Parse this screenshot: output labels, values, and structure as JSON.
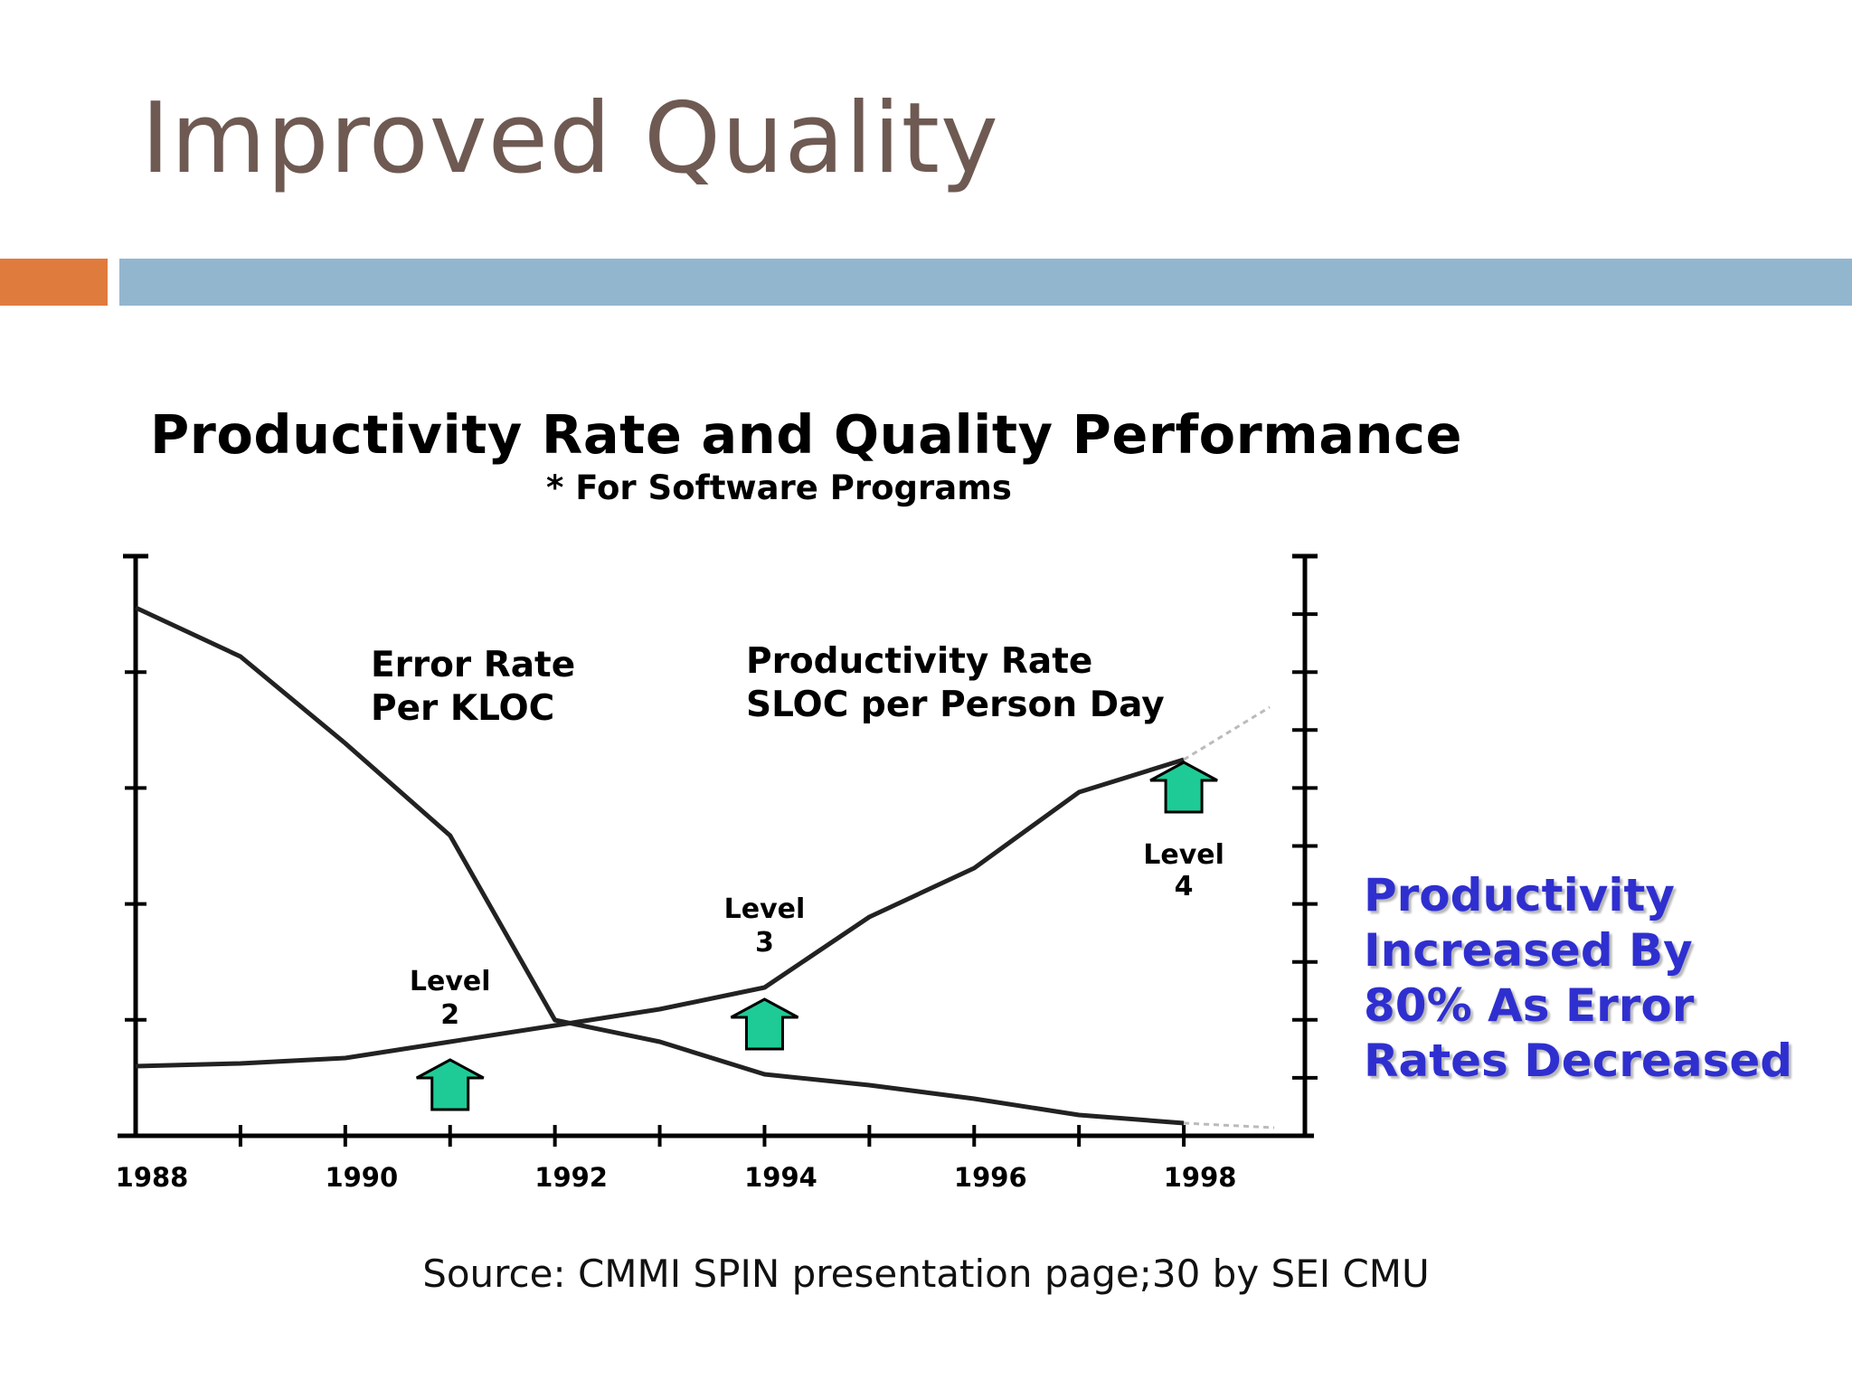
{
  "slide": {
    "title": "Improved Quality",
    "source": "Source: CMMI SPIN presentation page;30 by SEI CMU",
    "callout": "Productivity Increased By 80% As Error Rates Decreased"
  },
  "colors": {
    "title": "#6e5a52",
    "accent_orange": "#e07b3e",
    "accent_blue": "#93b6cf",
    "callout": "#2f2fd0",
    "arrow": "#1ecb96"
  },
  "chart_data": {
    "type": "line",
    "title": "Productivity Rate and Quality Performance",
    "subtitle": "* For Software Programs",
    "xlabel": "",
    "ylabel": "",
    "xlim": [
      1988,
      1999
    ],
    "x_ticks": [
      1988,
      1990,
      1992,
      1994,
      1996,
      1998
    ],
    "grid": false,
    "series": [
      {
        "name": "Error Rate Per KLOC",
        "label_lines": [
          "Error Rate",
          "Per KLOC"
        ],
        "x": [
          1988,
          1989,
          1990,
          1991,
          1992,
          1993,
          1994,
          1995,
          1996,
          1997,
          1998
        ],
        "y": [
          9.6,
          8.7,
          7.1,
          5.4,
          2.0,
          1.6,
          1.0,
          0.8,
          0.55,
          0.25,
          0.1
        ]
      },
      {
        "name": "Productivity Rate SLOC per Person Day",
        "label_lines": [
          "Productivity Rate",
          "SLOC per Person Day"
        ],
        "x": [
          1988,
          1989,
          1990,
          1991,
          1992,
          1993,
          1994,
          1995,
          1996,
          1997,
          1998
        ],
        "y": [
          1.15,
          1.2,
          1.3,
          1.6,
          1.9,
          2.2,
          2.6,
          3.9,
          4.8,
          6.2,
          6.8
        ]
      }
    ],
    "annotations": [
      {
        "lines": [
          "Level",
          "2"
        ],
        "x": 1991
      },
      {
        "lines": [
          "Level",
          "3"
        ],
        "x": 1994
      },
      {
        "lines": [
          "Level",
          "4"
        ],
        "x": 1998
      }
    ]
  }
}
